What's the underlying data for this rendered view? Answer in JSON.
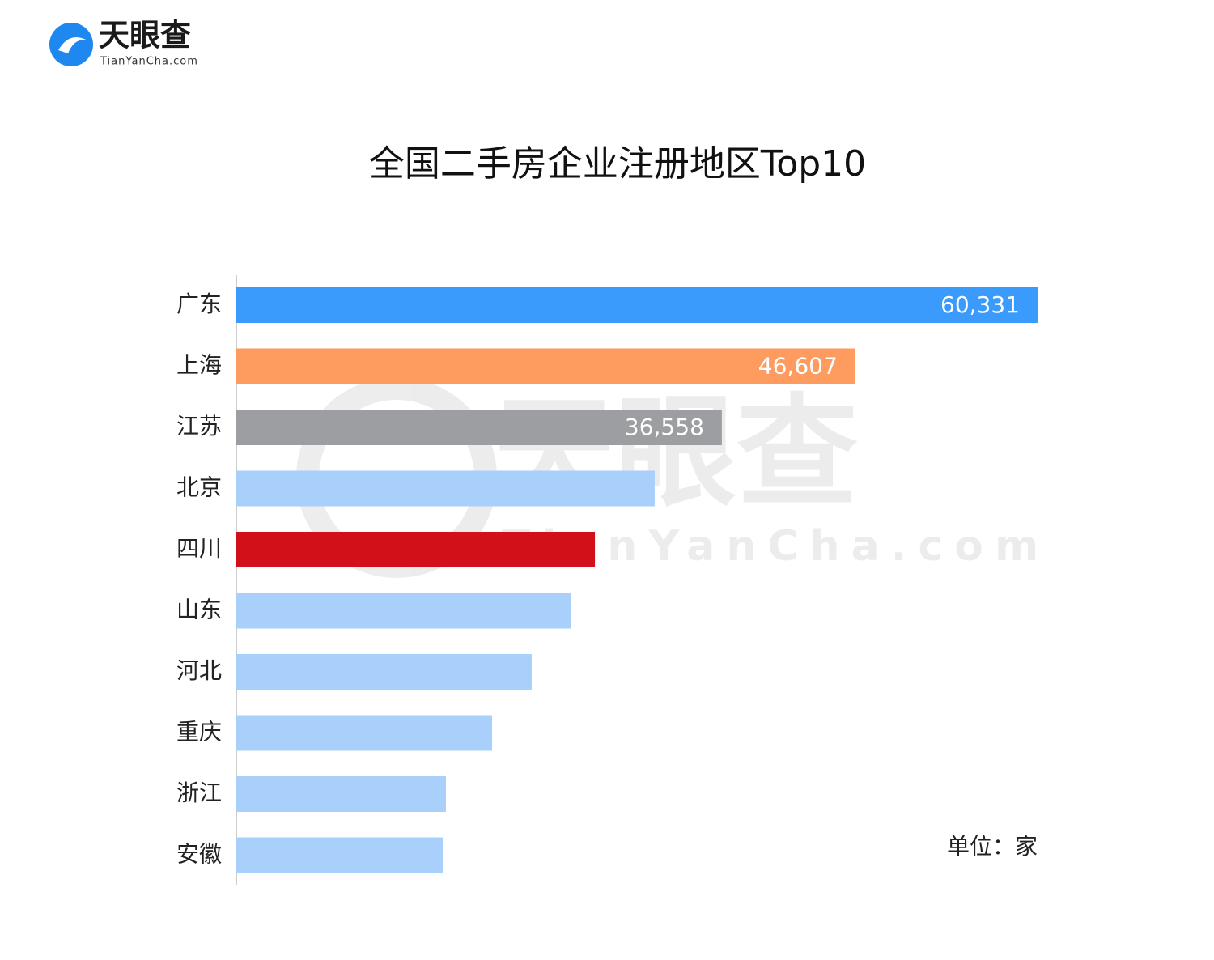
{
  "brand": {
    "name": "天眼查",
    "site": "TianYanCha.com"
  },
  "chart_data": {
    "type": "barh",
    "title": "全国二手房企业注册地区Top10",
    "categories": [
      "广东",
      "上海",
      "江苏",
      "北京",
      "四川",
      "山东",
      "河北",
      "重庆",
      "浙江",
      "安徽"
    ],
    "values": [
      60331,
      46607,
      36558,
      31500,
      27000,
      25170,
      22240,
      19260,
      15780,
      15540
    ],
    "value_labels": [
      "60,331",
      "46,607",
      "36,558",
      null,
      null,
      null,
      null,
      null,
      null,
      null
    ],
    "colors": [
      "#3a9bfc",
      "#fd9c5e",
      "#9d9ea2",
      "#a8d0fb",
      "#d1101a",
      "#a8d0fb",
      "#a8d0fb",
      "#a8d0fb",
      "#a8d0fb",
      "#a8d0fb"
    ],
    "unit_note": "单位：家"
  }
}
